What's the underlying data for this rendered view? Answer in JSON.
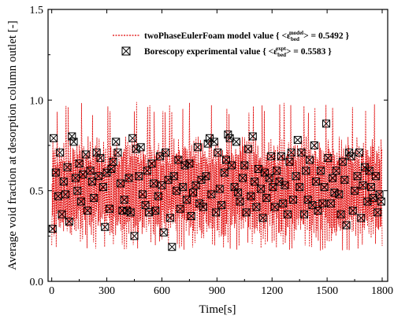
{
  "chart_data": {
    "type": "line",
    "title": "",
    "xlabel": "Time[s]",
    "ylabel": "Average void fraction at desorption column outlet [-]",
    "xlim": [
      -20,
      1830
    ],
    "ylim": [
      0.0,
      1.5
    ],
    "x_ticks": [
      0,
      300,
      600,
      900,
      1200,
      1500,
      1800
    ],
    "x_tick_labels": [
      "0",
      "300",
      "600",
      "900",
      "1200",
      "1500",
      "1800"
    ],
    "y_ticks": [
      0.0,
      0.5,
      1.0,
      1.5
    ],
    "y_tick_labels": [
      "0.0",
      "0.5",
      "1.0",
      "1.5"
    ],
    "grid": false,
    "legend_position": "top-right",
    "series": [
      {
        "name": "twoPhaseEulerFoam model value",
        "legend_value": "= 0.5492",
        "style": "dashed-line",
        "color": "#e00000",
        "x_start": 0,
        "x_end": 1800,
        "mean": 0.5492,
        "oscillation_period_s": 12,
        "typical_range": [
          0.2,
          0.8
        ],
        "peak_max": 0.99,
        "trough_min": 0.17
      },
      {
        "name": "Borescopy experimental value",
        "legend_value": "= 0.5583",
        "style": "marker-boxed-x",
        "color": "#000000",
        "mean": 0.5583,
        "points": [
          [
            5,
            0.29
          ],
          [
            10,
            0.79
          ],
          [
            22,
            0.6
          ],
          [
            35,
            0.47
          ],
          [
            45,
            0.71
          ],
          [
            55,
            0.37
          ],
          [
            65,
            0.55
          ],
          [
            75,
            0.48
          ],
          [
            85,
            0.63
          ],
          [
            95,
            0.33
          ],
          [
            110,
            0.8
          ],
          [
            120,
            0.77
          ],
          [
            130,
            0.57
          ],
          [
            140,
            0.5
          ],
          [
            150,
            0.65
          ],
          [
            160,
            0.44
          ],
          [
            170,
            0.59
          ],
          [
            185,
            0.7
          ],
          [
            195,
            0.39
          ],
          [
            210,
            0.61
          ],
          [
            220,
            0.55
          ],
          [
            230,
            0.46
          ],
          [
            245,
            0.71
          ],
          [
            255,
            0.58
          ],
          [
            265,
            0.68
          ],
          [
            280,
            0.52
          ],
          [
            290,
            0.3
          ],
          [
            300,
            0.6
          ],
          [
            315,
            0.4
          ],
          [
            325,
            0.62
          ],
          [
            335,
            0.66
          ],
          [
            350,
            0.77
          ],
          [
            360,
            0.71
          ],
          [
            375,
            0.54
          ],
          [
            385,
            0.39
          ],
          [
            395,
            0.45
          ],
          [
            410,
            0.39
          ],
          [
            420,
            0.57
          ],
          [
            430,
            0.38
          ],
          [
            440,
            0.79
          ],
          [
            450,
            0.25
          ],
          [
            460,
            0.73
          ],
          [
            475,
            0.58
          ],
          [
            485,
            0.74
          ],
          [
            495,
            0.48
          ],
          [
            510,
            0.42
          ],
          [
            520,
            0.61
          ],
          [
            530,
            0.38
          ],
          [
            545,
            0.65
          ],
          [
            555,
            0.54
          ],
          [
            565,
            0.39
          ],
          [
            580,
            0.47
          ],
          [
            590,
            0.69
          ],
          [
            600,
            0.53
          ],
          [
            610,
            0.27
          ],
          [
            620,
            0.71
          ],
          [
            635,
            0.56
          ],
          [
            645,
            0.35
          ],
          [
            655,
            0.19
          ],
          [
            665,
            0.58
          ],
          [
            680,
            0.5
          ],
          [
            690,
            0.67
          ],
          [
            700,
            0.4
          ],
          [
            715,
            0.52
          ],
          [
            725,
            0.64
          ],
          [
            735,
            0.45
          ],
          [
            750,
            0.65
          ],
          [
            760,
            0.36
          ],
          [
            770,
            0.49
          ],
          [
            785,
            0.53
          ],
          [
            795,
            0.74
          ],
          [
            805,
            0.43
          ],
          [
            815,
            0.56
          ],
          [
            825,
            0.41
          ],
          [
            840,
            0.58
          ],
          [
            850,
            0.76
          ],
          [
            860,
            0.79
          ],
          [
            870,
            0.48
          ],
          [
            885,
            0.77
          ],
          [
            895,
            0.38
          ],
          [
            905,
            0.71
          ],
          [
            915,
            0.51
          ],
          [
            925,
            0.42
          ],
          [
            940,
            0.6
          ],
          [
            950,
            0.67
          ],
          [
            960,
            0.81
          ],
          [
            970,
            0.79
          ],
          [
            980,
            0.64
          ],
          [
            995,
            0.52
          ],
          [
            1005,
            0.77
          ],
          [
            1015,
            0.49
          ],
          [
            1025,
            0.44
          ],
          [
            1040,
            0.57
          ],
          [
            1050,
            0.64
          ],
          [
            1060,
            0.38
          ],
          [
            1070,
            0.73
          ],
          [
            1085,
            0.47
          ],
          [
            1095,
            0.8
          ],
          [
            1105,
            0.55
          ],
          [
            1115,
            0.41
          ],
          [
            1125,
            0.62
          ],
          [
            1140,
            0.51
          ],
          [
            1150,
            0.35
          ],
          [
            1160,
            0.6
          ],
          [
            1170,
            0.46
          ],
          [
            1185,
            0.57
          ],
          [
            1195,
            0.69
          ],
          [
            1205,
            0.52
          ],
          [
            1215,
            0.41
          ],
          [
            1225,
            0.61
          ],
          [
            1240,
            0.55
          ],
          [
            1250,
            0.69
          ],
          [
            1260,
            0.43
          ],
          [
            1270,
            0.53
          ],
          [
            1285,
            0.37
          ],
          [
            1295,
            0.66
          ],
          [
            1305,
            0.71
          ],
          [
            1315,
            0.45
          ],
          [
            1330,
            0.58
          ],
          [
            1340,
            0.78
          ],
          [
            1350,
            0.52
          ],
          [
            1360,
            0.71
          ],
          [
            1375,
            0.37
          ],
          [
            1385,
            0.61
          ],
          [
            1395,
            0.45
          ],
          [
            1405,
            0.67
          ],
          [
            1420,
            0.42
          ],
          [
            1430,
            0.75
          ],
          [
            1440,
            0.55
          ],
          [
            1450,
            0.39
          ],
          [
            1465,
            0.61
          ],
          [
            1475,
            0.43
          ],
          [
            1485,
            0.52
          ],
          [
            1495,
            0.87
          ],
          [
            1505,
            0.68
          ],
          [
            1520,
            0.43
          ],
          [
            1530,
            0.57
          ],
          [
            1540,
            0.49
          ],
          [
            1550,
            0.61
          ],
          [
            1565,
            0.48
          ],
          [
            1575,
            0.37
          ],
          [
            1585,
            0.66
          ],
          [
            1595,
            0.56
          ],
          [
            1605,
            0.31
          ],
          [
            1620,
            0.71
          ],
          [
            1630,
            0.69
          ],
          [
            1640,
            0.39
          ],
          [
            1650,
            0.5
          ],
          [
            1665,
            0.58
          ],
          [
            1675,
            0.71
          ],
          [
            1685,
            0.35
          ],
          [
            1695,
            0.53
          ],
          [
            1705,
            0.63
          ],
          [
            1720,
            0.44
          ],
          [
            1730,
            0.61
          ],
          [
            1740,
            0.52
          ],
          [
            1750,
            0.46
          ],
          [
            1765,
            0.58
          ],
          [
            1775,
            0.38
          ],
          [
            1785,
            0.48
          ],
          [
            1795,
            0.44
          ]
        ]
      }
    ]
  },
  "legend": {
    "entries": [
      {
        "label": "twoPhaseEulerFoam model value { <ε",
        "sub": "bed",
        "sup": "model",
        "tail": "> = 0.5492 }"
      },
      {
        "label": "Borescopy experimental value { <ε",
        "sub": "bed",
        "sup": "expt",
        "tail": "> = 0.5583 }"
      }
    ]
  },
  "colors": {
    "model_line": "#e00000",
    "marker": "#000000",
    "axis": "#000000",
    "background": "#ffffff"
  }
}
